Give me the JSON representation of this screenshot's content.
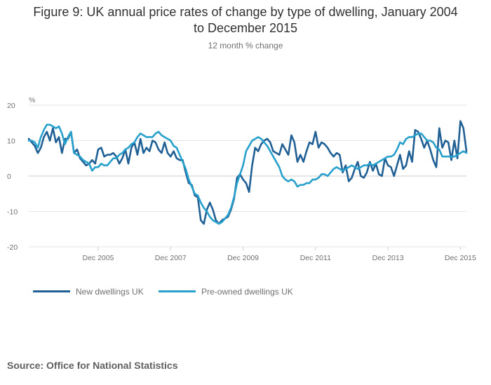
{
  "chart_data": {
    "type": "line",
    "title_line1": "Figure 9: UK annual price rates of change by type of dwelling, January 2004",
    "title_line2": "to December 2015",
    "subtitle": "12 month % change",
    "ylabel": "%",
    "ylim": [
      -20,
      20
    ],
    "yticks": [
      20,
      10,
      0,
      -10,
      -20
    ],
    "x_start": "Jan 2004",
    "x_end": "Dec 2015",
    "xticks": [
      {
        "label": "Dec 2005",
        "month_index": 23
      },
      {
        "label": "Dec 2007",
        "month_index": 47
      },
      {
        "label": "Dec 2009",
        "month_index": 71
      },
      {
        "label": "Dec 2011",
        "month_index": 95
      },
      {
        "label": "Dec 2013",
        "month_index": 119
      },
      {
        "label": "Dec 2015",
        "month_index": 143
      }
    ],
    "grid": true,
    "legend_position": "bottom-left",
    "series": [
      {
        "name": "New dwellings UK",
        "color": "#206095",
        "values": [
          10.5,
          9.5,
          8.5,
          6.5,
          8,
          11,
          12.5,
          10,
          13.5,
          9.5,
          11,
          6.5,
          10.5,
          10.5,
          12.5,
          6.5,
          7.5,
          5,
          4,
          3,
          3.5,
          4.5,
          3.5,
          7.5,
          8,
          5.5,
          6,
          6,
          6.5,
          5.5,
          3.5,
          5,
          7.5,
          3.5,
          8,
          9.5,
          6,
          10.5,
          6.5,
          8,
          7,
          10,
          9.5,
          7.5,
          6.5,
          9.5,
          6.5,
          5.5,
          7,
          5,
          4.5,
          4.5,
          1,
          -2,
          -2.5,
          -5.5,
          -6,
          -12.5,
          -13.5,
          -9.5,
          -7.5,
          -9.5,
          -12.5,
          -13.5,
          -12.5,
          -12,
          -11.5,
          -9.5,
          -6.5,
          -0.5,
          0.5,
          -1,
          -2,
          -4.5,
          3,
          8,
          7,
          9,
          10,
          10.5,
          9.5,
          7,
          6.5,
          6,
          9,
          7.5,
          6,
          11.5,
          9.5,
          4,
          6,
          4,
          7,
          9.5,
          9,
          12.5,
          8,
          9.5,
          9,
          8,
          6.5,
          5.5,
          6.5,
          6,
          1,
          3,
          -1.5,
          -0.5,
          2,
          4,
          0,
          -0.5,
          1,
          4,
          1.5,
          3.5,
          0.5,
          0,
          5,
          3,
          2.5,
          0,
          3,
          6,
          2,
          3,
          7,
          4,
          13,
          12.5,
          10.5,
          8,
          10,
          7.5,
          4.5,
          2.5,
          13.5,
          8,
          10,
          9.5,
          4.5,
          10,
          5,
          15.5,
          13.5,
          7
        ]
      },
      {
        "name": "Pre-owned dwellings UK",
        "color": "#27a0cc",
        "values": [
          10,
          10,
          9.5,
          8,
          11,
          13,
          14.5,
          14.5,
          14,
          13.5,
          14,
          12,
          9,
          11,
          12.5,
          6.5,
          6,
          5.5,
          4.5,
          4,
          3.5,
          1.5,
          2.5,
          2.5,
          3.5,
          3,
          3,
          4,
          5,
          5,
          6,
          6.5,
          7.5,
          8,
          9,
          9.5,
          11,
          12,
          11.5,
          11,
          11,
          11,
          12,
          12.5,
          11.5,
          11,
          10.5,
          10,
          8.5,
          8,
          6,
          4,
          2,
          -1,
          -3,
          -5,
          -5.5,
          -7.5,
          -9,
          -10,
          -11.5,
          -12.5,
          -13,
          -13.5,
          -13,
          -12,
          -11,
          -9,
          -6,
          -2,
          0.5,
          3,
          7,
          8.5,
          10,
          10.5,
          11,
          10.5,
          9.5,
          8.5,
          7,
          5.5,
          4,
          2.5,
          0,
          -1,
          -1.5,
          -1,
          -1.5,
          -3,
          -2.5,
          -2.5,
          -2,
          -2,
          -1,
          -1,
          -0.5,
          0.5,
          0.5,
          0,
          1,
          2,
          2.5,
          2,
          1.5,
          2,
          2.5,
          3,
          2.5,
          2,
          2.5,
          3,
          3,
          3.5,
          3,
          3.5,
          4,
          4.5,
          5,
          5.5,
          5.5,
          6,
          7.5,
          9.5,
          9,
          10.5,
          11,
          11,
          11.5,
          12,
          12,
          11,
          10,
          10,
          9.5,
          8,
          7.5,
          5.5,
          5.5,
          5.5,
          5.5,
          5.5,
          6,
          6.5,
          7,
          6.5
        ]
      }
    ]
  },
  "source": "Source: Office for National Statistics"
}
